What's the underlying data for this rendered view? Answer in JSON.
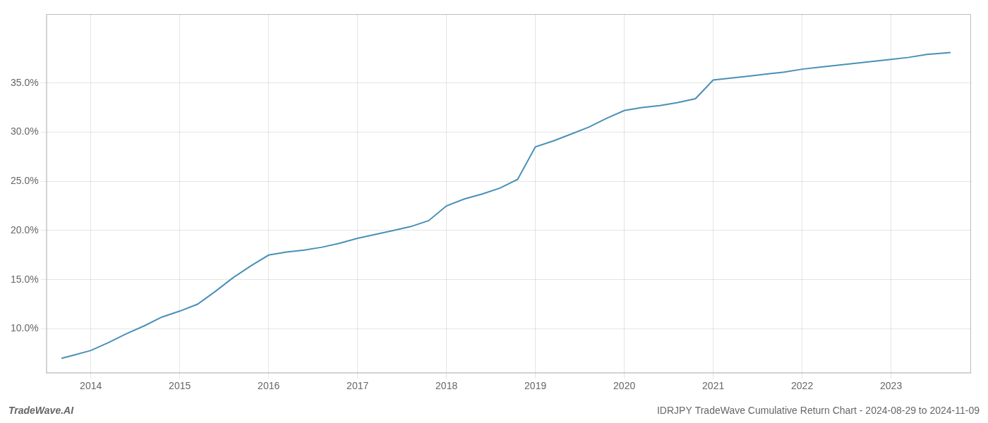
{
  "chart_data": {
    "type": "line",
    "title": "IDRJPY TradeWave Cumulative Return Chart - 2024-08-29 to 2024-11-09",
    "annotations": [
      "TradeWave.AI"
    ],
    "x": [
      2013.67,
      2013.8,
      2014.0,
      2014.2,
      2014.4,
      2014.6,
      2014.8,
      2015.0,
      2015.2,
      2015.4,
      2015.6,
      2015.8,
      2016.0,
      2016.2,
      2016.4,
      2016.6,
      2016.8,
      2017.0,
      2017.2,
      2017.4,
      2017.6,
      2017.8,
      2018.0,
      2018.2,
      2018.4,
      2018.6,
      2018.8,
      2019.0,
      2019.2,
      2019.4,
      2019.6,
      2019.8,
      2020.0,
      2020.2,
      2020.4,
      2020.6,
      2020.8,
      2021.0,
      2021.2,
      2021.4,
      2021.6,
      2021.8,
      2022.0,
      2022.2,
      2022.4,
      2022.6,
      2022.8,
      2023.0,
      2023.2,
      2023.4,
      2023.67
    ],
    "values": [
      7.0,
      7.3,
      7.8,
      8.6,
      9.5,
      10.3,
      11.2,
      11.8,
      12.5,
      13.8,
      15.2,
      16.4,
      17.5,
      17.8,
      18.0,
      18.3,
      18.7,
      19.2,
      19.6,
      20.0,
      20.4,
      21.0,
      22.5,
      23.2,
      23.7,
      24.3,
      25.2,
      28.5,
      29.1,
      29.8,
      30.5,
      31.4,
      32.2,
      32.5,
      32.7,
      33.0,
      33.4,
      35.3,
      35.5,
      35.7,
      35.9,
      36.1,
      36.4,
      36.6,
      36.8,
      37.0,
      37.2,
      37.4,
      37.6,
      37.9,
      38.1
    ],
    "color": "#4a90b8",
    "xlim": [
      2013.5,
      2023.9
    ],
    "ylim": [
      5.5,
      42.0
    ],
    "xticks": [
      2014,
      2015,
      2016,
      2017,
      2018,
      2019,
      2020,
      2021,
      2022,
      2023
    ],
    "yticks": [
      {
        "value": 10.0,
        "label": "10.0%"
      },
      {
        "value": 15.0,
        "label": "15.0%"
      },
      {
        "value": 20.0,
        "label": "20.0%"
      },
      {
        "value": 25.0,
        "label": "25.0%"
      },
      {
        "value": 30.0,
        "label": "30.0%"
      },
      {
        "value": 35.0,
        "label": "35.0%"
      }
    ],
    "grid": true
  }
}
